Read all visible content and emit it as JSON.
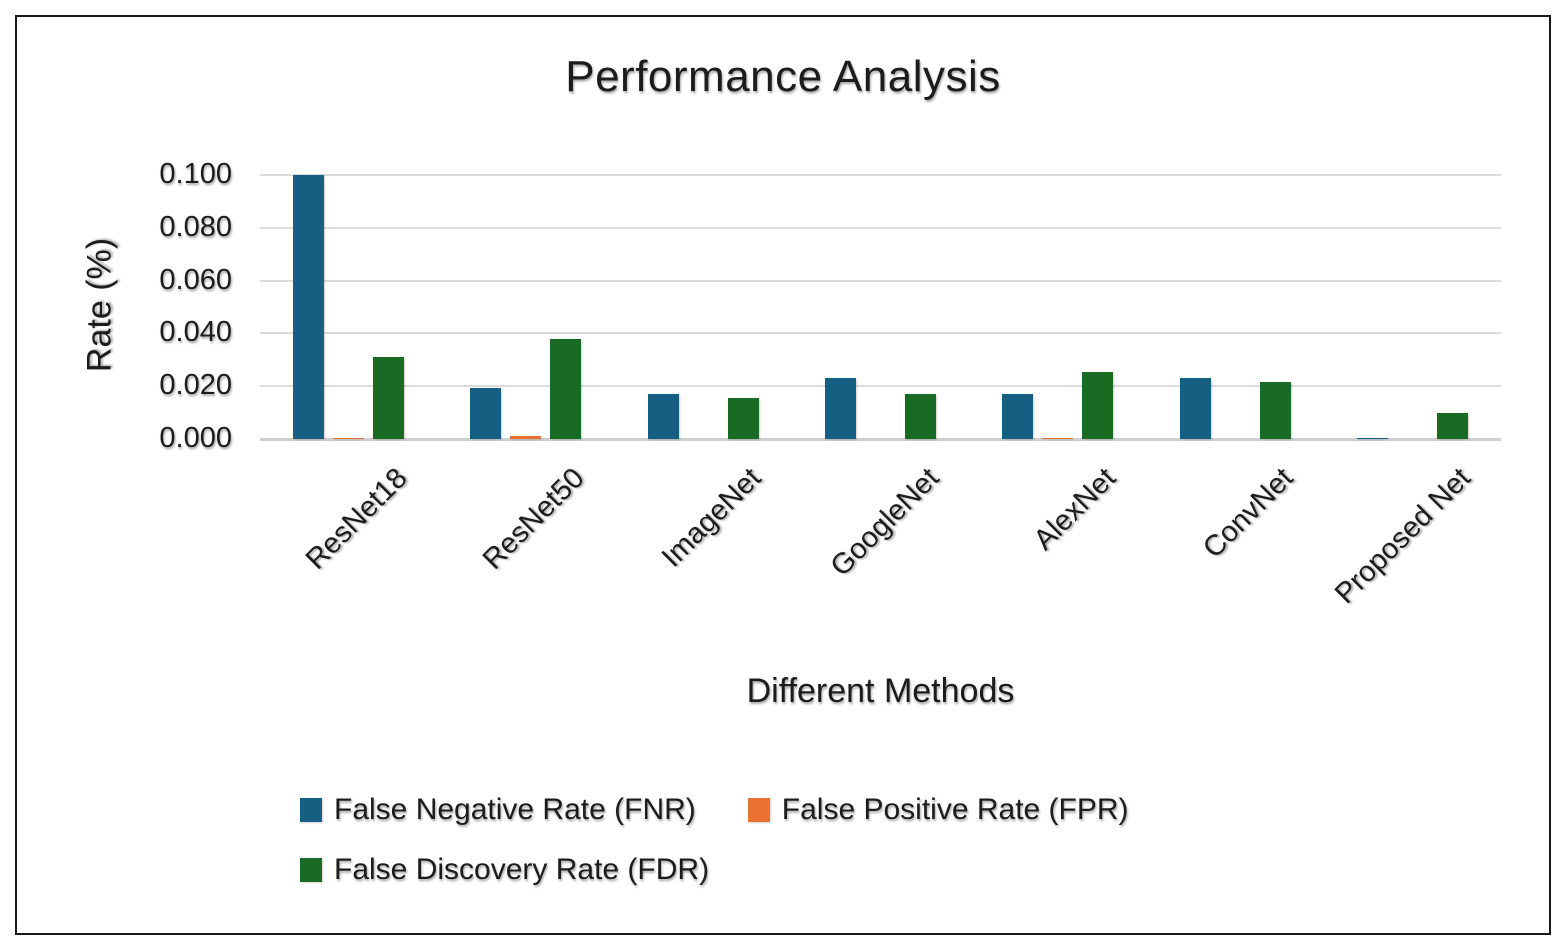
{
  "page": {
    "background": "#ffffff",
    "frame_border_color": "#1a1a1a",
    "gridline_color": "#dcdcdc",
    "text_color": "#1c1c1c"
  },
  "chart_data": {
    "type": "bar",
    "title": "Performance Analysis",
    "xlabel": "Different Methods",
    "ylabel": "Rate (%)",
    "ylim": [
      0,
      0.1
    ],
    "ytick_step": 0.02,
    "ytick_labels": [
      "0.000",
      "0.020",
      "0.040",
      "0.060",
      "0.080",
      "0.100"
    ],
    "grid": true,
    "legend_position": "bottom",
    "categories": [
      "ResNet18",
      "ResNet50",
      "ImageNet",
      "GoogleNet",
      "AlexNet",
      "ConvNet",
      "Proposed Net"
    ],
    "series": [
      {
        "name": "False Negative Rate (FNR)",
        "color": "#156082",
        "values": [
          0.1,
          0.0195,
          0.017,
          0.023,
          0.017,
          0.023,
          0.0005
        ]
      },
      {
        "name": "False Positive Rate (FPR)",
        "color": "#E97132",
        "values": [
          0.0005,
          0.001,
          0,
          0,
          0.0005,
          0,
          0
        ]
      },
      {
        "name": "False Discovery Rate (FDR)",
        "color": "#196B24",
        "values": [
          0.031,
          0.038,
          0.0155,
          0.017,
          0.0255,
          0.0215,
          0.01
        ]
      }
    ]
  }
}
